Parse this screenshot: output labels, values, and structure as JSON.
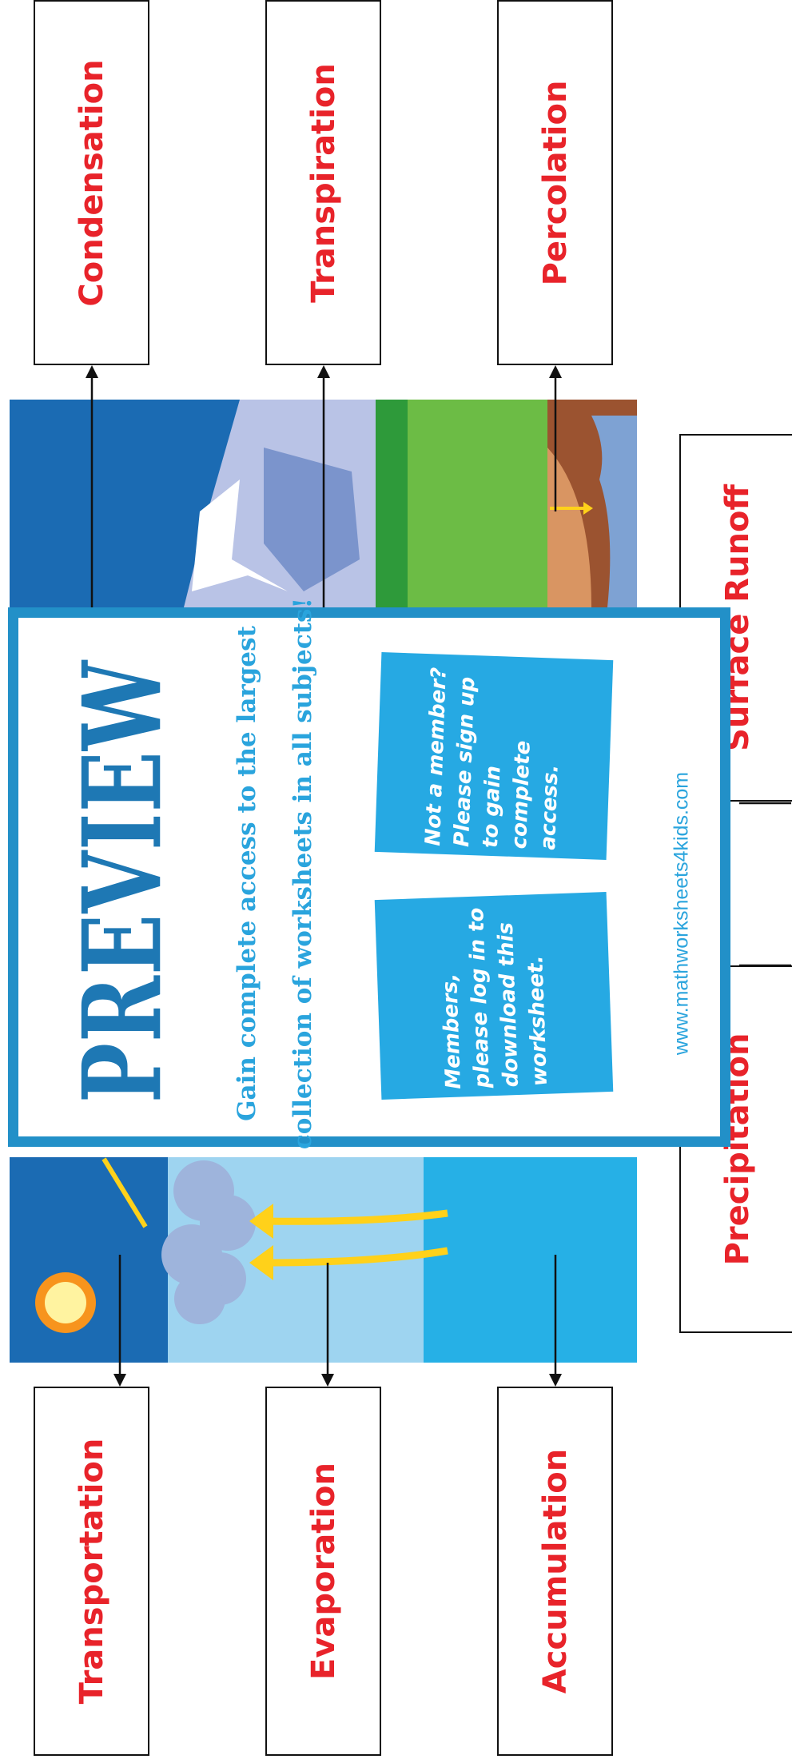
{
  "labels": {
    "condensation": "Condensation",
    "transpiration": "Transpiration",
    "percolation": "Percolation",
    "transportation": "Transportation",
    "evaporation": "Evaporation",
    "accumulation": "Accumulation",
    "runoff": "Surface Runoff",
    "precipitation": "Precipitation"
  },
  "preview": {
    "title": "PREVIEW",
    "tagline_1": "Gain complete access to the largest",
    "tagline_2": "collection of worksheets in all subjects!",
    "note_members": "Members, please log in to download this worksheet.",
    "note_nonmembers": "Not a member? Please sign up to gain complete access.",
    "website": "www.mathworksheets4kids.com"
  },
  "colors": {
    "label_text": "#e8232a",
    "preview_border": "#2290c8",
    "preview_text": "#1e78b4",
    "note_bg": "#26a9e3"
  }
}
